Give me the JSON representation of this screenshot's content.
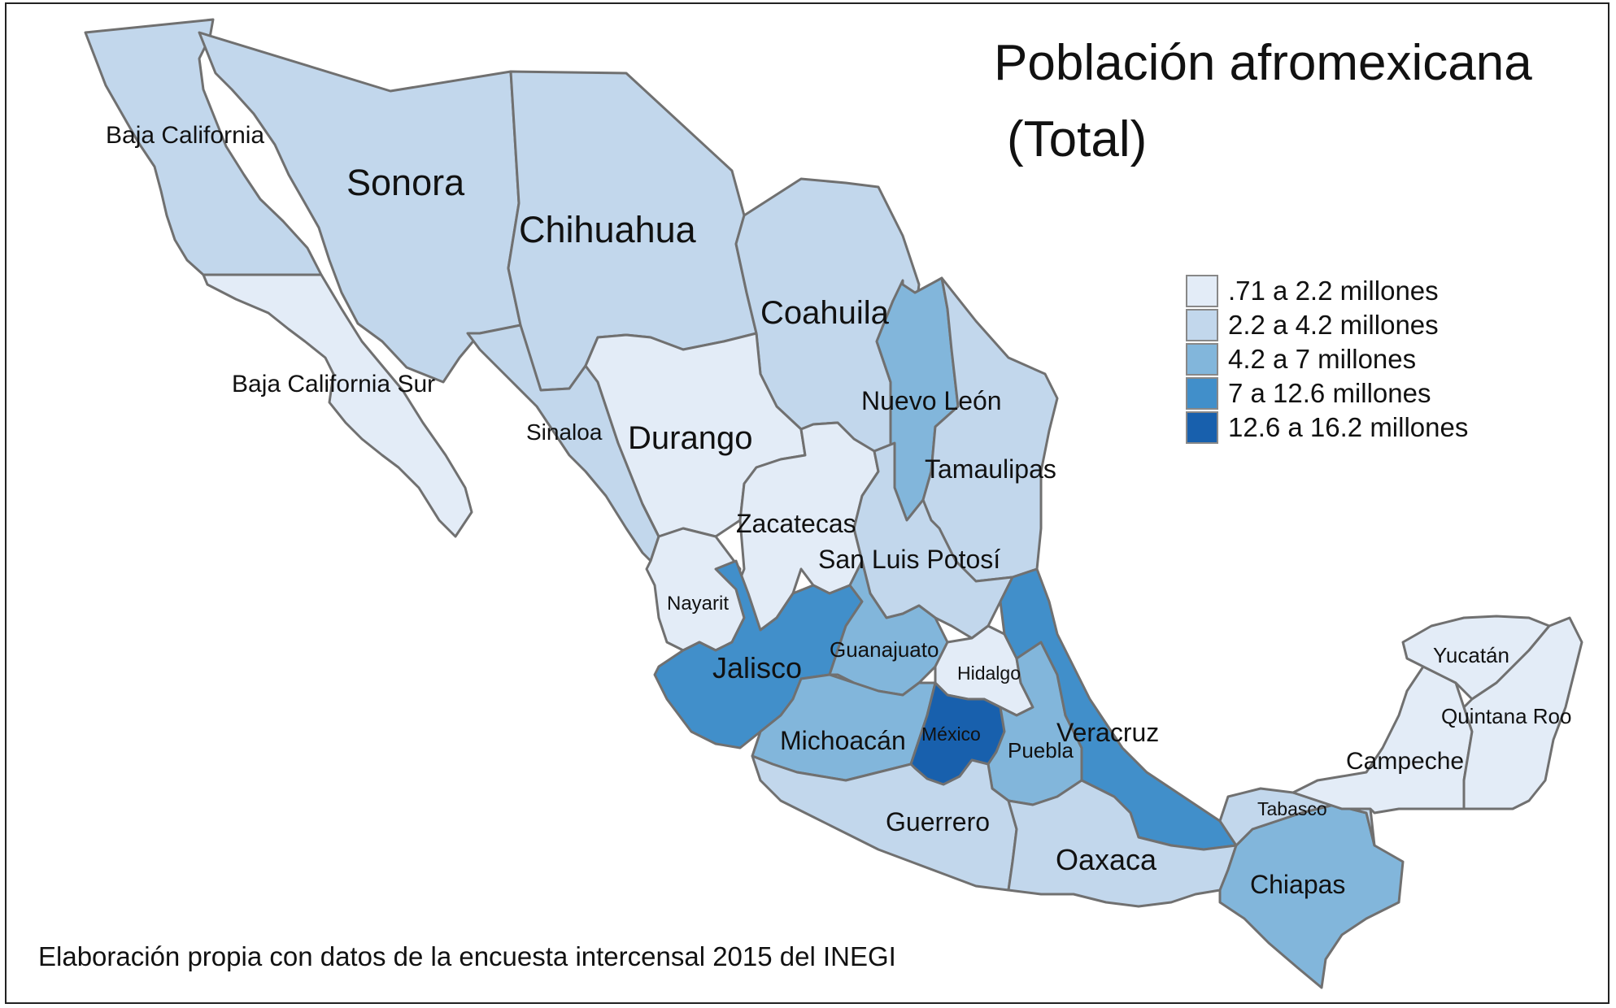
{
  "title": {
    "line1": "Población afromexicana",
    "line2": "(Total)"
  },
  "legend": {
    "classes": [
      {
        "label": ".71 a 2.2 millones",
        "color": "#e3ecf7"
      },
      {
        "label": "2.2 a 4.2 millones",
        "color": "#c2d7ec"
      },
      {
        "label": "4.2 a 7 millones",
        "color": "#82b6db"
      },
      {
        "label": "7 a 12.6 millones",
        "color": "#418fca"
      },
      {
        "label": "12.6 a 16.2 millones",
        "color": "#1860ad"
      }
    ]
  },
  "states": [
    {
      "name": "Baja California",
      "class": 1
    },
    {
      "name": "Baja California Sur",
      "class": 0
    },
    {
      "name": "Sonora",
      "class": 1
    },
    {
      "name": "Chihuahua",
      "class": 1
    },
    {
      "name": "Coahuila",
      "class": 1
    },
    {
      "name": "Nuevo León",
      "class": 2
    },
    {
      "name": "Tamaulipas",
      "class": 1
    },
    {
      "name": "Sinaloa",
      "class": 1
    },
    {
      "name": "Durango",
      "class": 0
    },
    {
      "name": "Zacatecas",
      "class": 0
    },
    {
      "name": "San Luis Potosí",
      "class": 1
    },
    {
      "name": "Nayarit",
      "class": 0
    },
    {
      "name": "Jalisco",
      "class": 3
    },
    {
      "name": "Guanajuato",
      "class": 2
    },
    {
      "name": "Hidalgo",
      "class": 0
    },
    {
      "name": "Michoacán",
      "class": 2
    },
    {
      "name": "México",
      "class": 4
    },
    {
      "name": "Puebla",
      "class": 2
    },
    {
      "name": "Veracruz",
      "class": 3
    },
    {
      "name": "Guerrero",
      "class": 1
    },
    {
      "name": "Oaxaca",
      "class": 1
    },
    {
      "name": "Chiapas",
      "class": 2
    },
    {
      "name": "Tabasco",
      "class": 1
    },
    {
      "name": "Campeche",
      "class": 0
    },
    {
      "name": "Yucatán",
      "class": 0
    },
    {
      "name": "Quintana Roo",
      "class": 0
    }
  ],
  "source": "Elaboración propia con datos de la encuesta intercensal 2015 del INEGI"
}
